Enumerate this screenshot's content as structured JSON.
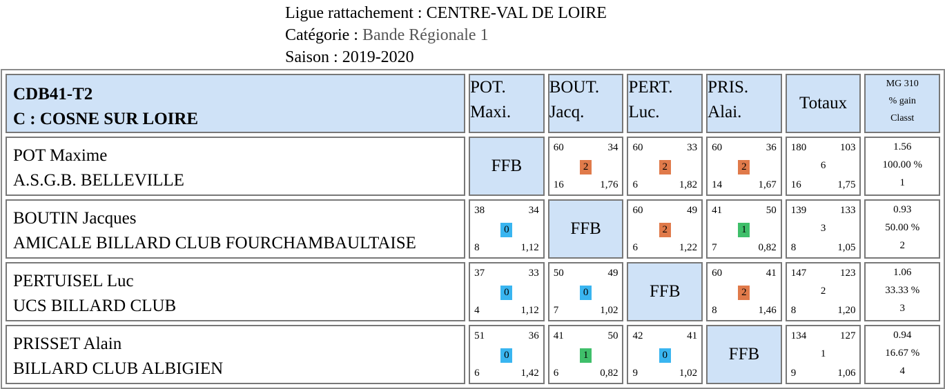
{
  "header": {
    "ligue_label": "Ligue rattachement : ",
    "ligue_value": "CENTRE-VAL DE LOIRE",
    "categorie_label": "Catégorie : ",
    "categorie_value": "Bande Régionale 1",
    "saison_label": "Saison : ",
    "saison_value": "2019-2020"
  },
  "table": {
    "group_title": "CDB41-T2",
    "group_subtitle": "C : COSNE SUR LOIRE",
    "columns": [
      {
        "line1": "POT.",
        "line2": "Maxi."
      },
      {
        "line1": "BOUT.",
        "line2": "Jacq."
      },
      {
        "line1": "PERT.",
        "line2": "Luc."
      },
      {
        "line1": "PRIS.",
        "line2": "Alai."
      }
    ],
    "totals_label": "Totaux",
    "mg_label": [
      "MG 310",
      "% gain",
      "Classt"
    ],
    "ffb_label": "FFB",
    "badge_colors": {
      "2": "#e07a4a",
      "1": "#3fbf6a",
      "0": "#39b5f0"
    },
    "rows": [
      {
        "name": "POT Maxime",
        "club": "A.S.G.B. BELLEVILLE",
        "cells": [
          null,
          {
            "tl": "60",
            "tr": "34",
            "pts": "2",
            "bl": "16",
            "br": "1,76"
          },
          {
            "tl": "60",
            "tr": "33",
            "pts": "2",
            "bl": "6",
            "br": "1,82"
          },
          {
            "tl": "60",
            "tr": "36",
            "pts": "2",
            "bl": "14",
            "br": "1,67"
          }
        ],
        "totals": {
          "tl": "180",
          "tr": "103",
          "mid": "6",
          "bl": "16",
          "br": "1,75"
        },
        "mg": {
          "moyenne": "1.56",
          "gain": "100.00 %",
          "classt": "1"
        }
      },
      {
        "name": "BOUTIN Jacques",
        "club": "AMICALE BILLARD CLUB FOURCHAMBAULTAISE",
        "cells": [
          {
            "tl": "38",
            "tr": "34",
            "pts": "0",
            "bl": "8",
            "br": "1,12"
          },
          null,
          {
            "tl": "60",
            "tr": "49",
            "pts": "2",
            "bl": "6",
            "br": "1,22"
          },
          {
            "tl": "41",
            "tr": "50",
            "pts": "1",
            "bl": "7",
            "br": "0,82"
          }
        ],
        "totals": {
          "tl": "139",
          "tr": "133",
          "mid": "3",
          "bl": "8",
          "br": "1,05"
        },
        "mg": {
          "moyenne": "0.93",
          "gain": "50.00 %",
          "classt": "2"
        }
      },
      {
        "name": "PERTUISEL Luc",
        "club": "UCS BILLARD CLUB",
        "cells": [
          {
            "tl": "37",
            "tr": "33",
            "pts": "0",
            "bl": "4",
            "br": "1,12"
          },
          {
            "tl": "50",
            "tr": "49",
            "pts": "0",
            "bl": "7",
            "br": "1,02"
          },
          null,
          {
            "tl": "60",
            "tr": "41",
            "pts": "2",
            "bl": "8",
            "br": "1,46"
          }
        ],
        "totals": {
          "tl": "147",
          "tr": "123",
          "mid": "2",
          "bl": "8",
          "br": "1,20"
        },
        "mg": {
          "moyenne": "1.06",
          "gain": "33.33 %",
          "classt": "3"
        }
      },
      {
        "name": "PRISSET Alain",
        "club": "BILLARD CLUB ALBIGIEN",
        "cells": [
          {
            "tl": "51",
            "tr": "36",
            "pts": "0",
            "bl": "6",
            "br": "1,42"
          },
          {
            "tl": "41",
            "tr": "50",
            "pts": "1",
            "bl": "6",
            "br": "0,82"
          },
          {
            "tl": "42",
            "tr": "41",
            "pts": "0",
            "bl": "9",
            "br": "1,02"
          },
          null
        ],
        "totals": {
          "tl": "134",
          "tr": "127",
          "mid": "1",
          "bl": "9",
          "br": "1,06"
        },
        "mg": {
          "moyenne": "0.94",
          "gain": "16.67 %",
          "classt": "4"
        }
      }
    ]
  }
}
